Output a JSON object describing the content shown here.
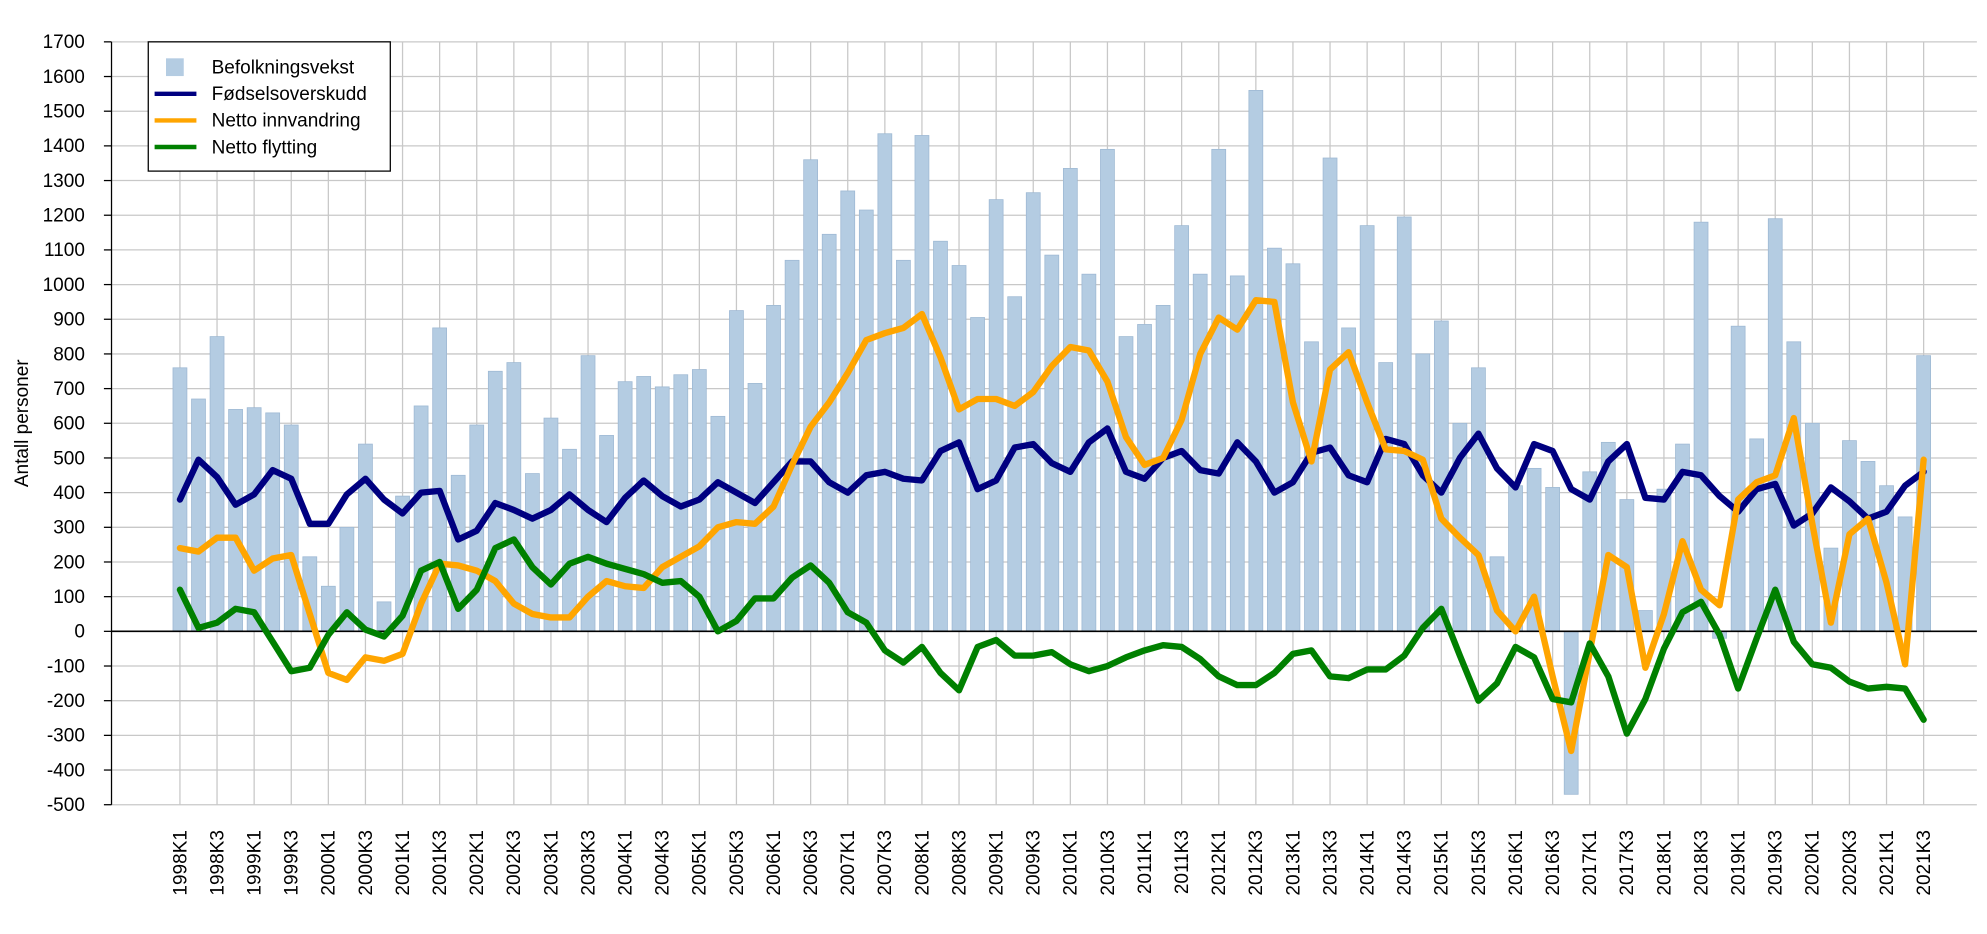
{
  "chart_data": {
    "type": "bar",
    "y_label": "Antall personer",
    "categories": [
      "1998K1",
      null,
      "1998K3",
      null,
      "1999K1",
      null,
      "1999K3",
      null,
      "2000K1",
      null,
      "2000K3",
      null,
      "2001K1",
      null,
      "2001K3",
      null,
      "2002K1",
      null,
      "2002K3",
      null,
      "2003K1",
      null,
      "2003K3",
      null,
      "2004K1",
      null,
      "2004K3",
      null,
      "2005K1",
      null,
      "2005K3",
      null,
      "2006K1",
      null,
      "2006K3",
      null,
      "2007K1",
      null,
      "2007K3",
      null,
      "2008K1",
      null,
      "2008K3",
      null,
      "2009K1",
      null,
      "2009K3",
      null,
      "2010K1",
      null,
      "2010K3",
      null,
      "2011K1",
      null,
      "2011K3",
      null,
      "2012K1",
      null,
      "2012K3",
      null,
      "2013K1",
      null,
      "2013K3",
      null,
      "2014K1",
      null,
      "2014K3",
      null,
      "2015K1",
      null,
      "2015K3",
      null,
      "2016K1",
      null,
      "2016K3",
      null,
      "2017K1",
      null,
      "2017K3",
      null,
      "2018K1",
      null,
      "2018K3",
      null,
      "2019K1",
      null,
      "2019K3",
      null,
      "2020K1",
      null,
      "2020K3",
      null,
      "2021K1",
      null,
      "2021K3"
    ],
    "series": [
      {
        "name": "Befolkningsvekst",
        "type": "bar",
        "color": "#b4cce2",
        "values": [
          760,
          670,
          850,
          640,
          645,
          630,
          595,
          215,
          130,
          300,
          540,
          85,
          390,
          650,
          875,
          450,
          595,
          750,
          775,
          455,
          615,
          525,
          795,
          565,
          720,
          735,
          705,
          740,
          755,
          620,
          925,
          715,
          940,
          1070,
          1360,
          1145,
          1270,
          1215,
          1435,
          1070,
          1430,
          1125,
          1055,
          905,
          1245,
          965,
          1265,
          1085,
          1335,
          1030,
          1390,
          850,
          885,
          940,
          1170,
          1030,
          1390,
          1025,
          1560,
          1105,
          1060,
          835,
          1365,
          875,
          1170,
          775,
          1195,
          800,
          895,
          600,
          760,
          215,
          420,
          470,
          415,
          -470,
          460,
          545,
          380,
          60,
          410,
          540,
          1180,
          -20,
          880,
          555,
          1190,
          835,
          600,
          240,
          550,
          490,
          420,
          330,
          795
        ]
      },
      {
        "name": "Fødselsoverskudd",
        "type": "line",
        "color": "#000080",
        "values": [
          380,
          495,
          445,
          365,
          395,
          465,
          440,
          310,
          310,
          395,
          440,
          380,
          340,
          400,
          405,
          265,
          290,
          370,
          350,
          325,
          350,
          395,
          350,
          315,
          385,
          435,
          390,
          360,
          380,
          430,
          400,
          370,
          430,
          490,
          490,
          430,
          400,
          450,
          460,
          440,
          435,
          520,
          545,
          410,
          435,
          530,
          540,
          485,
          460,
          545,
          585,
          460,
          440,
          500,
          520,
          465,
          455,
          545,
          490,
          400,
          430,
          515,
          530,
          450,
          430,
          555,
          540,
          450,
          400,
          500,
          570,
          470,
          415,
          540,
          520,
          410,
          380,
          490,
          540,
          385,
          380,
          460,
          450,
          390,
          345,
          410,
          425,
          305,
          340,
          415,
          375,
          325,
          345,
          420,
          460
        ]
      },
      {
        "name": "Netto innvandring",
        "type": "line",
        "color": "#ffa500",
        "values": [
          240,
          230,
          270,
          270,
          175,
          210,
          220,
          50,
          -120,
          -140,
          -75,
          -85,
          -65,
          80,
          195,
          190,
          175,
          145,
          80,
          50,
          40,
          40,
          100,
          145,
          130,
          125,
          185,
          215,
          245,
          300,
          315,
          310,
          360,
          480,
          590,
          660,
          745,
          840,
          860,
          875,
          915,
          790,
          640,
          670,
          670,
          650,
          690,
          765,
          820,
          810,
          720,
          560,
          480,
          500,
          610,
          800,
          905,
          870,
          955,
          950,
          660,
          490,
          755,
          805,
          660,
          525,
          520,
          495,
          325,
          270,
          220,
          60,
          0,
          100,
          -130,
          -345,
          -60,
          220,
          185,
          -105,
          50,
          260,
          120,
          75,
          380,
          430,
          450,
          615,
          310,
          25,
          280,
          325,
          140,
          -95,
          495
        ]
      },
      {
        "name": "Netto flytting",
        "type": "line",
        "color": "#008000",
        "values": [
          120,
          10,
          25,
          65,
          55,
          -30,
          -115,
          -105,
          -10,
          55,
          5,
          -15,
          45,
          175,
          200,
          65,
          120,
          240,
          265,
          185,
          135,
          195,
          215,
          195,
          180,
          165,
          140,
          145,
          100,
          0,
          30,
          95,
          95,
          155,
          190,
          140,
          55,
          25,
          -55,
          -90,
          -45,
          -120,
          -170,
          -45,
          -25,
          -70,
          -70,
          -60,
          -95,
          -115,
          -100,
          -75,
          -55,
          -40,
          -45,
          -80,
          -130,
          -155,
          -155,
          -120,
          -65,
          -55,
          -130,
          -135,
          -110,
          -110,
          -70,
          10,
          65,
          -70,
          -200,
          -150,
          -45,
          -75,
          -195,
          -205,
          -35,
          -130,
          -295,
          -195,
          -50,
          55,
          85,
          -10,
          -165,
          -20,
          120,
          -30,
          -95,
          -105,
          -145,
          -165,
          -160,
          -165,
          -255
        ]
      }
    ],
    "ylim": [
      -500,
      1700
    ],
    "yticks": [
      -500,
      -400,
      -300,
      -200,
      -100,
      0,
      100,
      200,
      300,
      400,
      500,
      600,
      700,
      800,
      900,
      1000,
      1100,
      1200,
      1300,
      1400,
      1500,
      1600,
      1700
    ],
    "grid": true,
    "legend": "top-left"
  }
}
